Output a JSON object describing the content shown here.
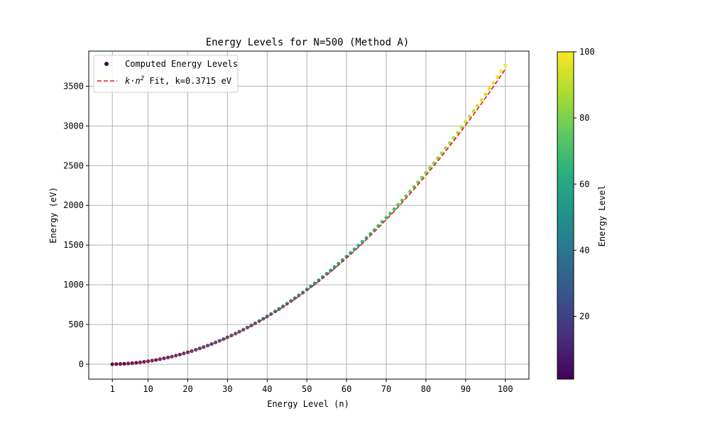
{
  "chart_data": {
    "type": "scatter",
    "title": "Energy Levels for N=500 (Method A)",
    "xlabel": "Energy Level (n)",
    "ylabel": "Energy (eV)",
    "xlim": [
      -4.95,
      105.95
    ],
    "ylim": [
      -187.8,
      3941.9
    ],
    "xticks": [
      1,
      10,
      20,
      30,
      40,
      50,
      60,
      70,
      80,
      90,
      100
    ],
    "yticks": [
      0,
      500,
      1000,
      1500,
      2000,
      2500,
      3000,
      3500
    ],
    "grid": true,
    "legend_position": "top-left",
    "scatter_series": {
      "name": "Computed Energy Levels",
      "x_start": 1,
      "x_end": 100,
      "k": 0.3765,
      "note_colormap": "viridis"
    },
    "fit_series": {
      "name_prefix": "k·n",
      "name_sup": "2",
      "name_suffix": " Fit, k=0.3715 eV",
      "k": 0.3715,
      "color": "#e31a1c"
    },
    "colorbar": {
      "label": "Energy Level",
      "min": 1,
      "max": 100,
      "ticks": [
        20,
        40,
        60,
        80,
        100
      ],
      "colormap": "viridis"
    }
  }
}
